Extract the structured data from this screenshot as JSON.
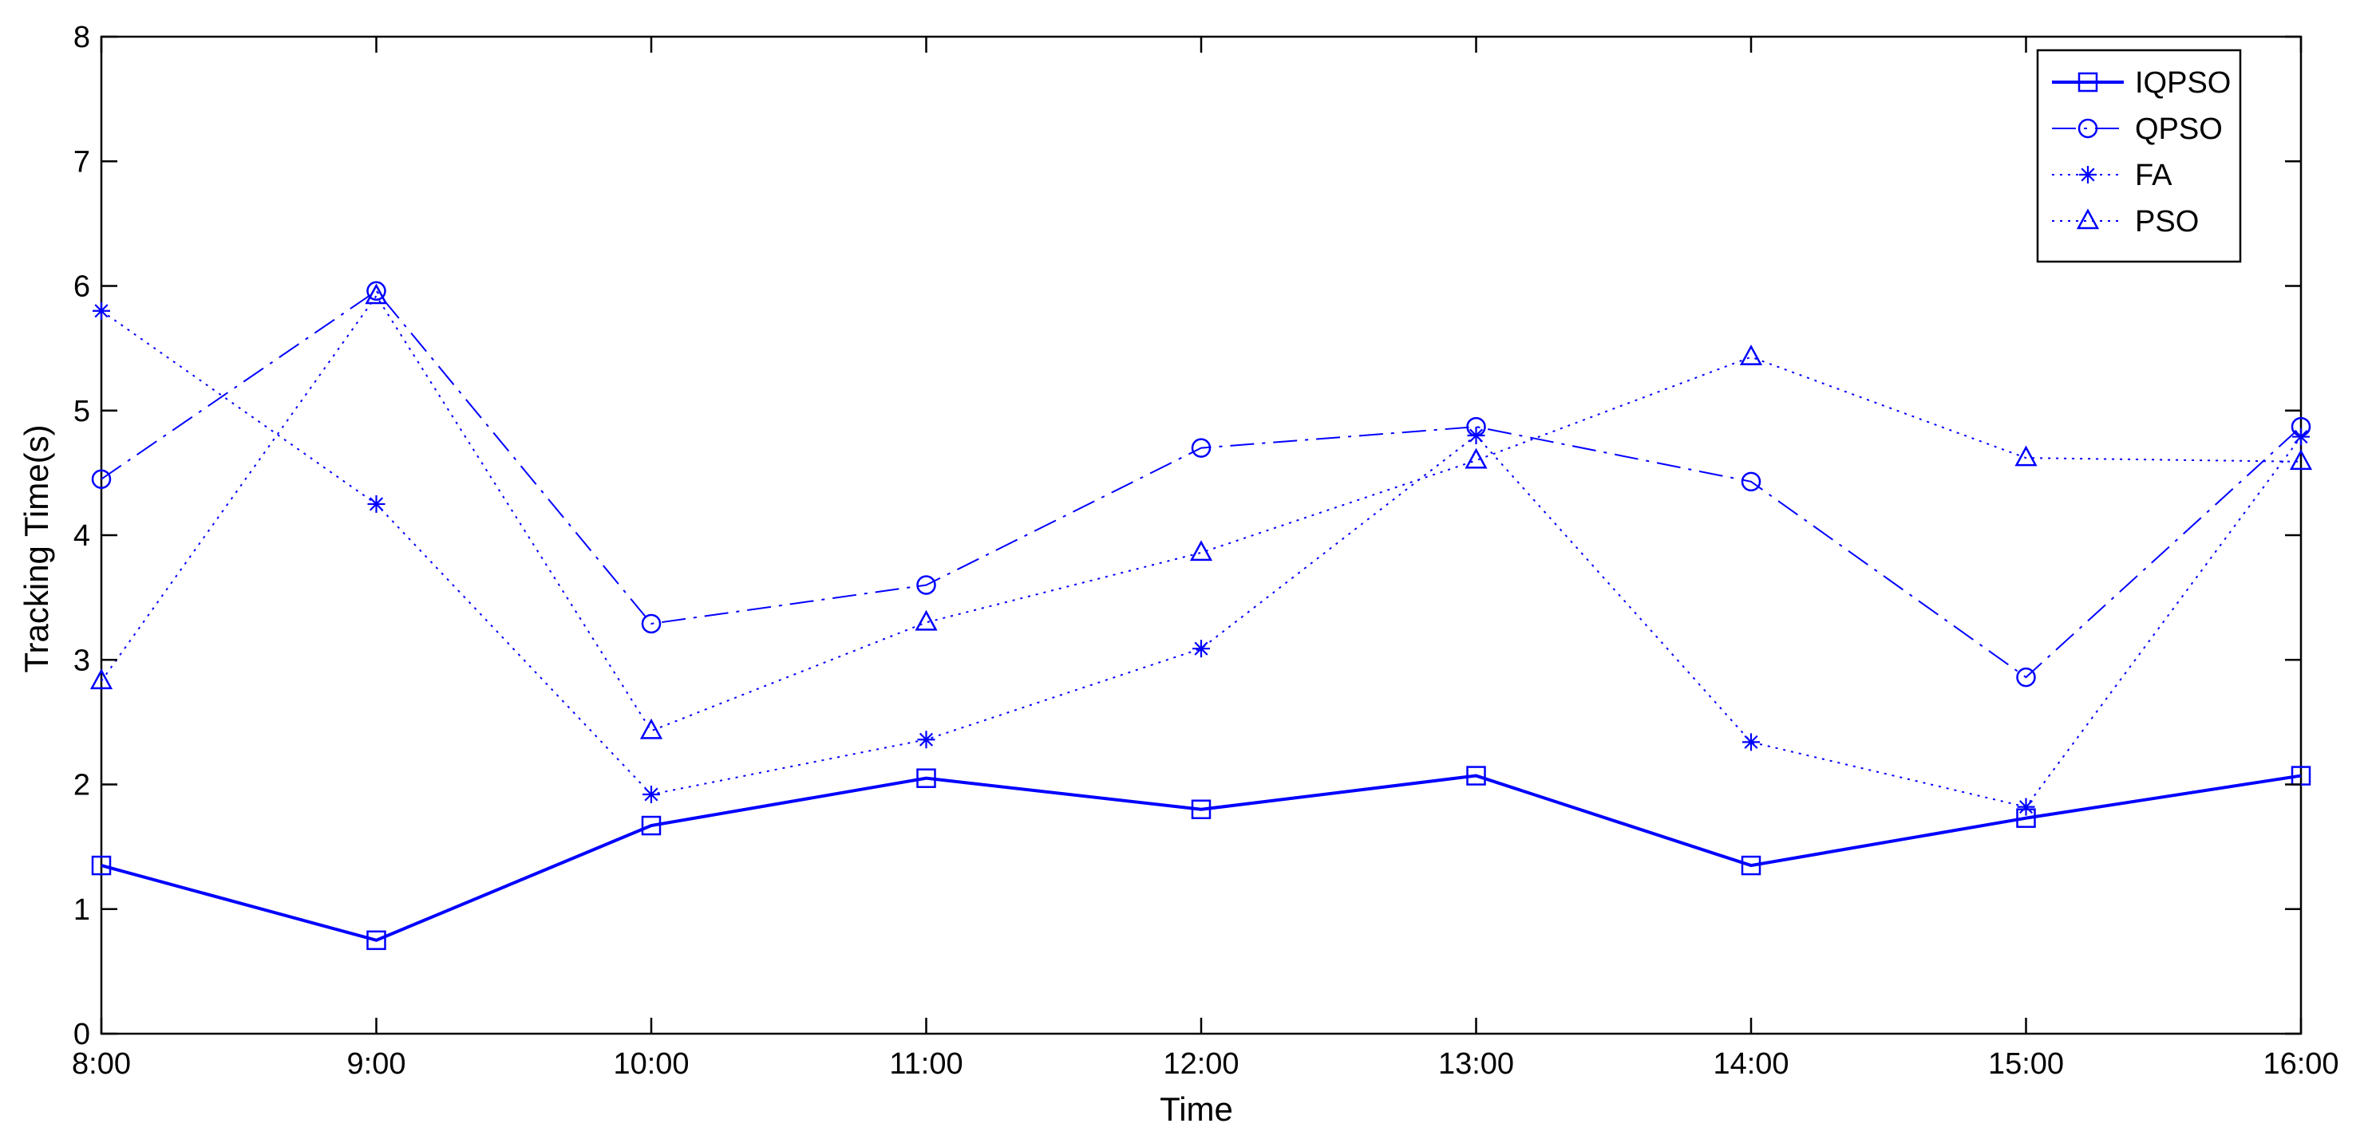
{
  "chart_data": {
    "type": "line",
    "title": "",
    "xlabel": "Time",
    "ylabel": "Tracking Time(s)",
    "categories": [
      "8:00",
      "9:00",
      "10:00",
      "11:00",
      "12:00",
      "13:00",
      "14:00",
      "15:00",
      "16:00"
    ],
    "ylim": [
      0,
      8
    ],
    "yticks": [
      "0",
      "1",
      "2",
      "3",
      "4",
      "5",
      "6",
      "7",
      "8"
    ],
    "grid": false,
    "legend_position": "top-right",
    "series": [
      {
        "name": "IQPSO",
        "values": [
          1.35,
          0.75,
          1.67,
          2.05,
          1.8,
          2.07,
          1.35,
          1.73,
          2.07
        ],
        "color": "#0000ff",
        "line_style": "solid",
        "marker": "square"
      },
      {
        "name": "QPSO",
        "values": [
          4.45,
          5.96,
          3.29,
          3.6,
          4.7,
          4.87,
          4.43,
          2.86,
          4.87
        ],
        "color": "#0000ff",
        "line_style": "dashdot",
        "marker": "circle"
      },
      {
        "name": "FA",
        "values": [
          5.8,
          4.25,
          1.92,
          2.36,
          3.09,
          4.8,
          2.34,
          1.82,
          4.79
        ],
        "color": "#0000ff",
        "line_style": "dotted",
        "marker": "star"
      },
      {
        "name": "PSO",
        "values": [
          2.83,
          5.92,
          2.43,
          3.3,
          3.86,
          4.6,
          5.43,
          4.62,
          4.59
        ],
        "color": "#0000ff",
        "line_style": "dotted",
        "marker": "triangle"
      }
    ]
  }
}
